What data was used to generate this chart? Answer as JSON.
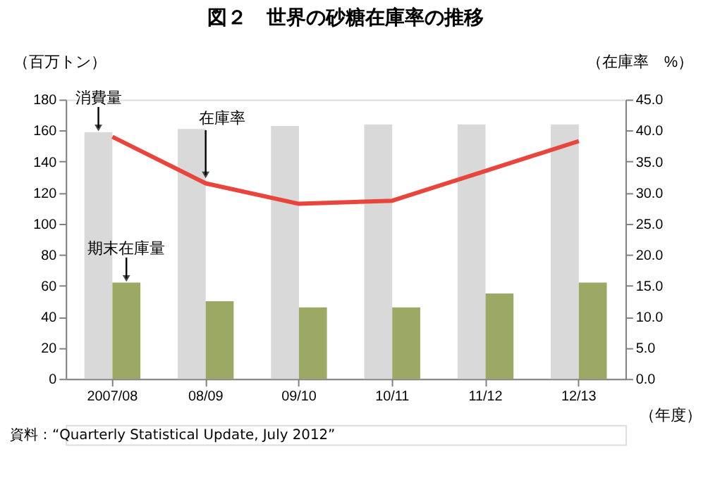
{
  "chart_data": {
    "type": "bar",
    "title": "図２　世界の砂糖在庫率の推移",
    "categories": [
      "2007/08",
      "08/09",
      "09/10",
      "10/11",
      "11/12",
      "12/13"
    ],
    "series": [
      {
        "name": "消費量",
        "color": "#d9d9d9",
        "values": [
          159,
          161,
          163,
          164,
          164,
          164
        ]
      },
      {
        "name": "期末在庫量",
        "color": "#9ca964",
        "values": [
          62,
          50,
          46,
          46,
          55,
          62
        ]
      },
      {
        "name": "在庫率",
        "type": "line",
        "axis": "y2",
        "color": "#e8463c",
        "values": [
          39.0,
          31.5,
          28.2,
          28.7,
          33.5,
          38.3
        ]
      }
    ],
    "xlabel": "（年度）",
    "ylabel": "（百万トン）",
    "y2label": "（在庫率　%）",
    "ylim": [
      0,
      180
    ],
    "yticks": [
      0,
      20,
      40,
      60,
      80,
      100,
      120,
      140,
      160,
      180
    ],
    "y2lim": [
      0,
      45
    ],
    "y2ticks": [
      {
        "value": 0,
        "label": "0.0"
      },
      {
        "value": 5,
        "label": "5.0"
      },
      {
        "value": 10,
        "label": "10.0"
      },
      {
        "value": 15,
        "label": "15.0"
      },
      {
        "value": 20,
        "label": "20.0"
      },
      {
        "value": 25,
        "label": "25.0"
      },
      {
        "value": 30,
        "label": "30.0"
      },
      {
        "value": 35,
        "label": "35.0"
      },
      {
        "value": 40,
        "label": "40.0"
      },
      {
        "value": 45,
        "label": "45.0"
      }
    ],
    "grid": false,
    "annotations": [
      "資料：“Quarterly Statistical Update, July 2012”"
    ]
  }
}
